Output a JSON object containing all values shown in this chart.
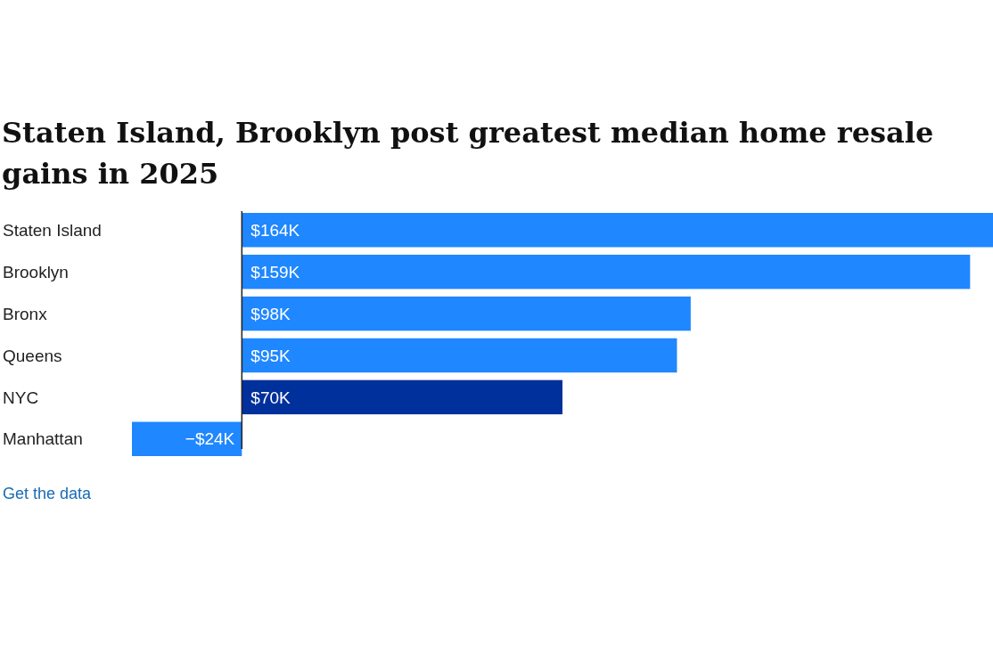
{
  "chart_data": {
    "type": "bar",
    "orientation": "horizontal",
    "title": "Staten Island, Brooklyn post greatest median home resale gains in 2025",
    "categories": [
      "Staten Island",
      "Brooklyn",
      "Bronx",
      "Queens",
      "NYC",
      "Manhattan"
    ],
    "values": [
      164,
      159,
      98,
      95,
      70,
      -24
    ],
    "value_labels": [
      "$164K",
      "$159K",
      "$98K",
      "$95K",
      "$70K",
      "−$24K"
    ],
    "colors": [
      "#1f87ff",
      "#1f87ff",
      "#1f87ff",
      "#1f87ff",
      "#00309b",
      "#1f87ff"
    ],
    "annotations": [
      "Get the data"
    ]
  }
}
